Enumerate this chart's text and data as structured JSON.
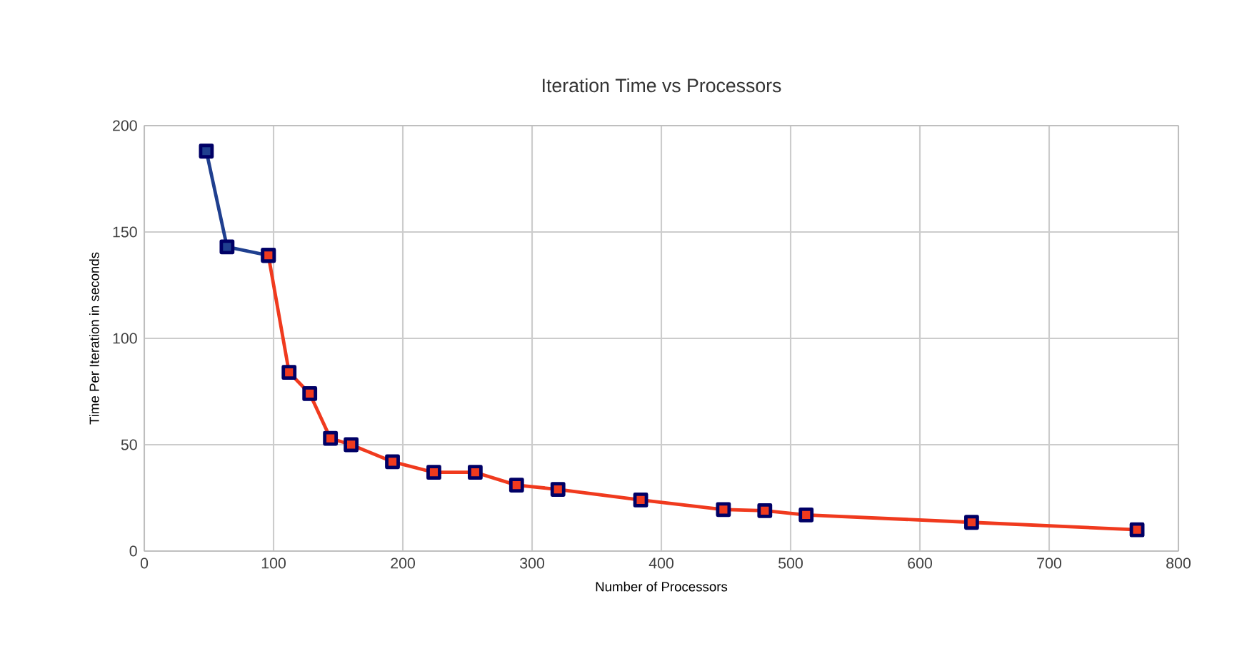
{
  "chart_data": {
    "type": "line",
    "title": "Iteration Time vs Processors",
    "xlabel": "Number of Processors",
    "ylabel": "Time Per Iteration in seconds",
    "xlim": [
      0,
      800
    ],
    "xticks": [
      0,
      100,
      200,
      300,
      400,
      500,
      600,
      700,
      800
    ],
    "ylim": [
      0,
      200
    ],
    "yticks": [
      0,
      50,
      100,
      150,
      200
    ],
    "grid": true,
    "marker": "square",
    "series": [
      {
        "color": "#1f3f8f",
        "x": [
          48,
          64,
          96
        ],
        "values": [
          188,
          143,
          139
        ]
      },
      {
        "color": "#f03a1e",
        "x": [
          96,
          112,
          128,
          144,
          160,
          192,
          224,
          256,
          288,
          320,
          384,
          448,
          480,
          512,
          640,
          768
        ],
        "values": [
          139,
          84,
          74,
          53,
          50,
          42,
          37,
          37,
          31,
          29,
          24,
          19.5,
          19,
          17,
          13.5,
          10
        ]
      }
    ]
  }
}
